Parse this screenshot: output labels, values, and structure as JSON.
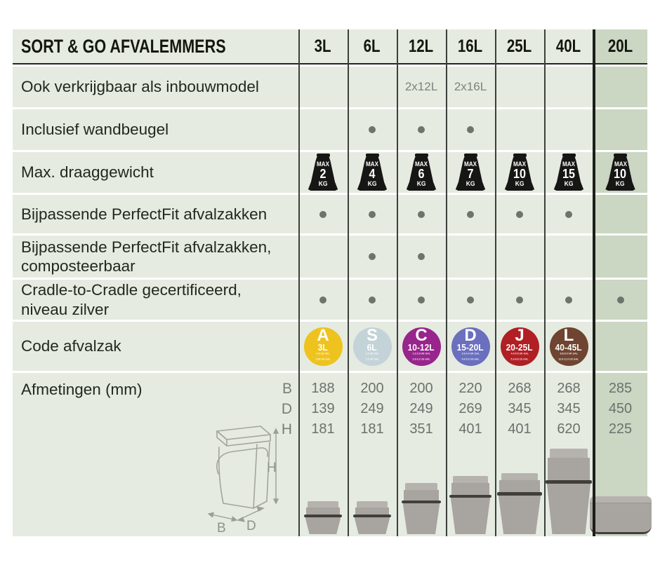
{
  "header": {
    "title": "SORT & GO AFVALEMMERS",
    "columns": [
      "3L",
      "6L",
      "12L",
      "16L",
      "25L",
      "40L",
      "20L"
    ]
  },
  "weight": {
    "prefix": "MAX",
    "unit": "KG"
  },
  "rows": [
    {
      "id": "inbouwmodel",
      "label": "Ook verkrijgbaar als inbouwmodel",
      "type": "text",
      "values": [
        "",
        "",
        "2x12L",
        "2x16L",
        "",
        "",
        ""
      ]
    },
    {
      "id": "wandbeugel",
      "label": "Inclusief wandbeugel",
      "type": "dot",
      "values": [
        0,
        1,
        1,
        1,
        0,
        0,
        0
      ]
    },
    {
      "id": "draaggewicht",
      "label": "Max. draaggewicht",
      "type": "weight",
      "values": [
        "2",
        "4",
        "6",
        "7",
        "10",
        "15",
        "10"
      ]
    },
    {
      "id": "perfectfit",
      "label": "Bijpassende PerfectFit afvalzakken",
      "type": "dot",
      "values": [
        1,
        1,
        1,
        1,
        1,
        1,
        0
      ]
    },
    {
      "id": "perfectfit-composteerbaar",
      "label": "Bijpassende PerfectFit afvalzakken, composteerbaar",
      "type": "dot",
      "values": [
        0,
        1,
        1,
        0,
        0,
        0,
        0
      ]
    },
    {
      "id": "cradle-to-cradle",
      "label": "Cradle-to-Cradle gecertificeerd, niveau zilver",
      "type": "dot",
      "values": [
        1,
        1,
        1,
        1,
        1,
        1,
        1
      ]
    },
    {
      "id": "code-afvalzak",
      "label": "Code afvalzak",
      "type": "badge",
      "values": [
        {
          "letter": "A",
          "size": "3L",
          "color": "#eec31e",
          "sub": [
            "0.8 US GAL",
            "0.66 UK GAL"
          ]
        },
        {
          "letter": "S",
          "size": "6L",
          "color": "#c3d3d8",
          "sub": [
            "1.6 US GAL",
            "1.3 UK GAL"
          ]
        },
        {
          "letter": "C",
          "size": "10-12L",
          "color": "#97258c",
          "sub": [
            "2.2-2.6 UK GAL",
            "2.6-3.2 US GAL"
          ]
        },
        {
          "letter": "D",
          "size": "15-20L",
          "color": "#6a6fbe",
          "sub": [
            "3.3-4.4 UK GAL",
            "4.0-5.3 US GAL"
          ]
        },
        {
          "letter": "J",
          "size": "20-25L",
          "color": "#b01f24",
          "sub": [
            "4.4-5.5 UK GAL",
            "5.3-6.6 US GAL"
          ]
        },
        {
          "letter": "L",
          "size": "40-45L",
          "color": "#6f4430",
          "sub": [
            "8.8-9.9 UK GAL",
            "10.6-11.9 US GAL"
          ]
        },
        null
      ]
    }
  ],
  "dimensions": {
    "label": "Afmetingen (mm)",
    "keys": [
      "B",
      "D",
      "H"
    ],
    "B": [
      "188",
      "200",
      "200",
      "220",
      "268",
      "268",
      "285"
    ],
    "D": [
      "139",
      "249",
      "249",
      "269",
      "345",
      "345",
      "450"
    ],
    "H": [
      "181",
      "181",
      "351",
      "401",
      "401",
      "620",
      "225"
    ]
  },
  "sketch": {
    "b": "B",
    "d": "D",
    "h": "H"
  },
  "colors": {
    "cell_green": "#e5ebe1",
    "highlight_green": "#cbd6c3",
    "separator_dark": "#3b403b",
    "separator_thick": "#1c1e19",
    "dot_grey": "#6e736e",
    "value_grey": "#6c716c",
    "weight_black": "#161614"
  }
}
